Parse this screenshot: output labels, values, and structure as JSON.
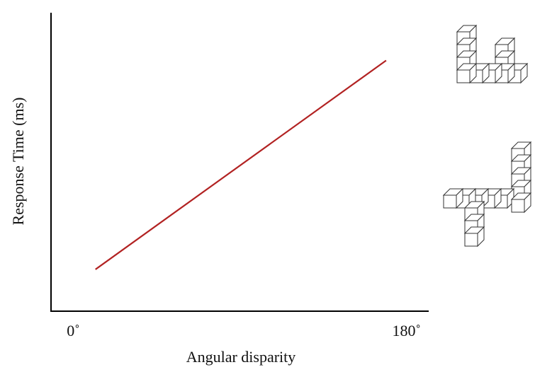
{
  "chart_data": {
    "type": "line",
    "x_label": "Angular disparity",
    "y_label": "Response Time (ms)",
    "x": [
      12,
      169
    ],
    "series": [
      {
        "color": "#b22222",
        "values": [
          14,
          84
        ]
      }
    ],
    "xlim": [
      -12,
      192
    ],
    "xticks": [
      {
        "value": 0,
        "label": "0˚"
      },
      {
        "value": 180,
        "label": "180˚"
      }
    ],
    "ylim": [
      0,
      100
    ]
  }
}
